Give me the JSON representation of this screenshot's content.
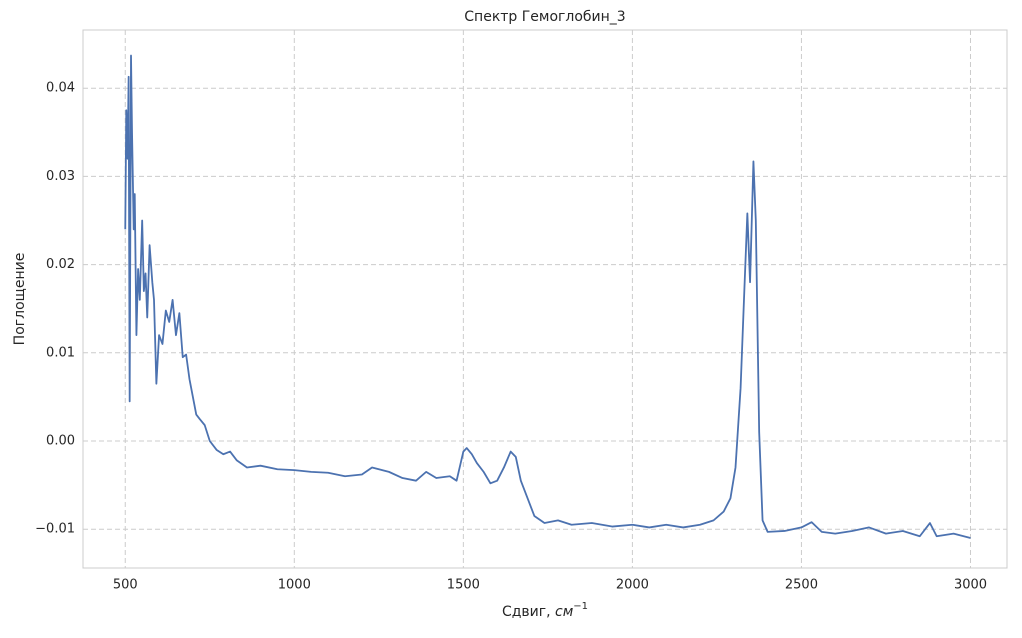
{
  "chart_data": {
    "type": "line",
    "title": "Спектр Гемоглобин_3",
    "xlabel": "Сдвиг,",
    "xlabel_unit": "см",
    "xlabel_exponent": "−1",
    "ylabel": "Поглощение",
    "x": [
      500,
      503,
      507,
      510,
      513,
      517,
      520,
      525,
      528,
      533,
      538,
      543,
      550,
      555,
      560,
      565,
      572,
      580,
      585,
      592,
      600,
      610,
      620,
      630,
      640,
      650,
      660,
      670,
      680,
      690,
      700,
      710,
      720,
      735,
      750,
      770,
      790,
      810,
      830,
      860,
      900,
      950,
      1000,
      1050,
      1100,
      1150,
      1200,
      1230,
      1280,
      1320,
      1360,
      1390,
      1420,
      1460,
      1480,
      1500,
      1510,
      1525,
      1540,
      1560,
      1580,
      1600,
      1620,
      1640,
      1655,
      1670,
      1690,
      1710,
      1740,
      1780,
      1820,
      1880,
      1940,
      2000,
      2050,
      2100,
      2150,
      2200,
      2240,
      2270,
      2290,
      2305,
      2320,
      2330,
      2340,
      2348,
      2358,
      2365,
      2375,
      2385,
      2400,
      2450,
      2500,
      2530,
      2560,
      2600,
      2650,
      2700,
      2750,
      2800,
      2850,
      2880,
      2900,
      2950,
      3000
    ],
    "series": [
      {
        "name": "Гемоглобин_3",
        "color": "#4c72b0",
        "values": [
          0.024,
          0.0375,
          0.032,
          0.0413,
          0.0045,
          0.0437,
          0.035,
          0.024,
          0.028,
          0.012,
          0.0195,
          0.016,
          0.025,
          0.017,
          0.019,
          0.014,
          0.0222,
          0.018,
          0.016,
          0.0065,
          0.012,
          0.011,
          0.0148,
          0.0135,
          0.016,
          0.012,
          0.0145,
          0.0095,
          0.0098,
          0.007,
          0.005,
          0.003,
          0.0025,
          0.0018,
          0.0,
          -0.001,
          -0.0015,
          -0.0012,
          -0.0022,
          -0.003,
          -0.0028,
          -0.0032,
          -0.0033,
          -0.0035,
          -0.0036,
          -0.004,
          -0.0038,
          -0.003,
          -0.0035,
          -0.0042,
          -0.0045,
          -0.0035,
          -0.0042,
          -0.004,
          -0.0045,
          -0.0012,
          -0.0008,
          -0.0015,
          -0.0025,
          -0.0035,
          -0.0048,
          -0.0045,
          -0.003,
          -0.0012,
          -0.0018,
          -0.0045,
          -0.0065,
          -0.0085,
          -0.0093,
          -0.009,
          -0.0095,
          -0.0093,
          -0.0097,
          -0.0095,
          -0.0098,
          -0.0095,
          -0.0098,
          -0.0095,
          -0.009,
          -0.008,
          -0.0065,
          -0.003,
          0.006,
          0.016,
          0.0258,
          0.018,
          0.0317,
          0.025,
          0.001,
          -0.009,
          -0.0103,
          -0.0102,
          -0.0098,
          -0.0092,
          -0.0103,
          -0.0105,
          -0.0102,
          -0.0098,
          -0.0105,
          -0.0102,
          -0.0108,
          -0.0093,
          -0.0108,
          -0.0105,
          -0.011
        ]
      }
    ],
    "xlim": [
      375,
      3108
    ],
    "ylim": [
      -0.0144,
      0.0466
    ],
    "xticks": [
      500,
      1000,
      1500,
      2000,
      2500,
      3000
    ],
    "yticks": [
      {
        "value": -0.01,
        "label": "−0.01"
      },
      {
        "value": 0,
        "label": "0.00"
      },
      0.01,
      0.02,
      0.03,
      0.04
    ],
    "grid": true
  }
}
